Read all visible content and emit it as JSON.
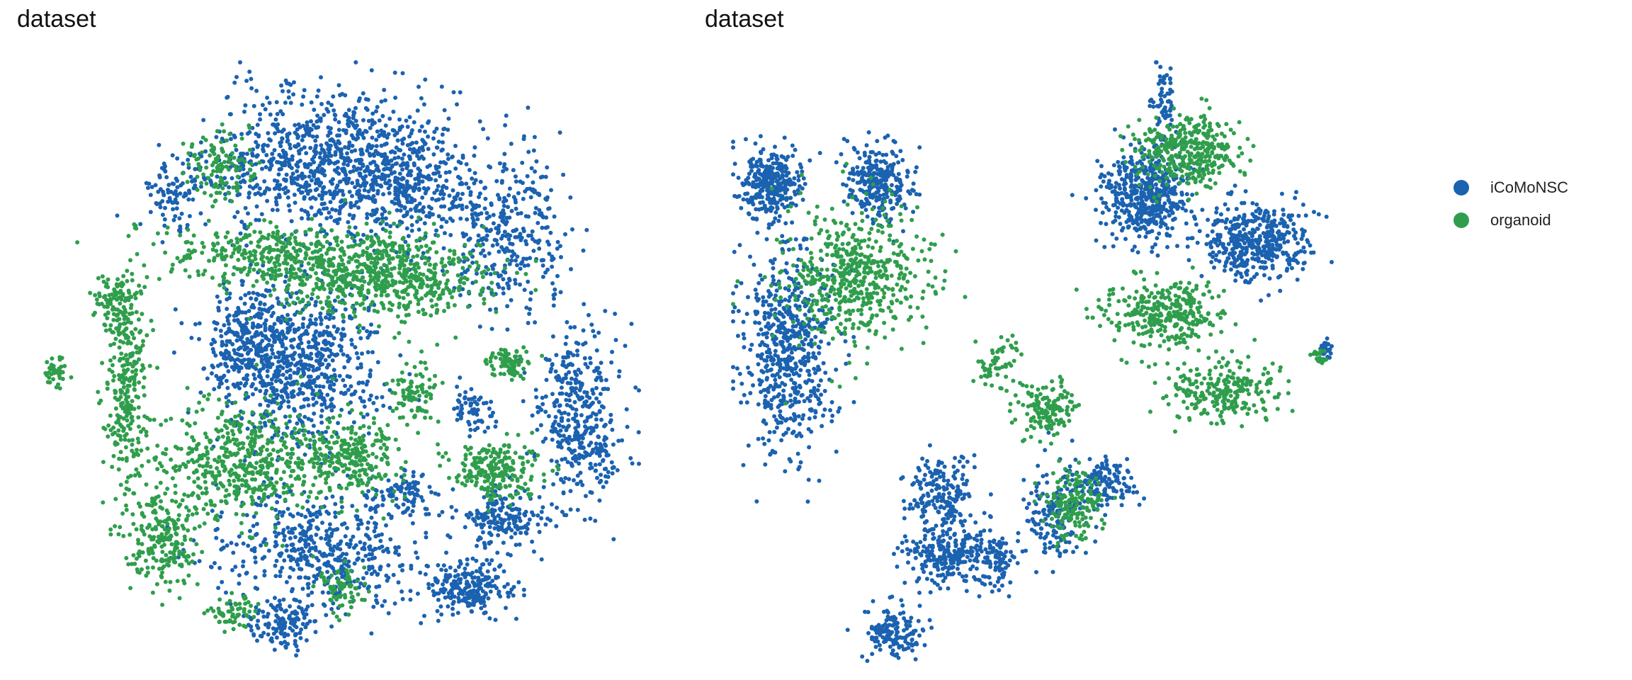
{
  "colors": {
    "iCoMoNSC": "#1b62b0",
    "organoid": "#2f9e4c"
  },
  "chart_data": [
    {
      "type": "scatter",
      "title": "dataset",
      "embedding": "tSNE",
      "xlabel": "",
      "ylabel": "",
      "axes_visible": false,
      "grid": false,
      "series": [
        {
          "name": "iCoMoNSC",
          "color": "#1b62b0",
          "clusters": [
            {
              "cx": 0.47,
              "cy": 0.17,
              "rx": 0.2,
              "ry": 0.12,
              "n": 900
            },
            {
              "cx": 0.6,
              "cy": 0.21,
              "rx": 0.12,
              "ry": 0.1,
              "n": 300
            },
            {
              "cx": 0.78,
              "cy": 0.28,
              "rx": 0.11,
              "ry": 0.15,
              "n": 350
            },
            {
              "cx": 0.22,
              "cy": 0.22,
              "rx": 0.05,
              "ry": 0.06,
              "n": 90
            },
            {
              "cx": 0.43,
              "cy": 0.51,
              "rx": 0.13,
              "ry": 0.14,
              "n": 700
            },
            {
              "cx": 0.34,
              "cy": 0.47,
              "rx": 0.08,
              "ry": 0.09,
              "n": 260
            },
            {
              "cx": 0.9,
              "cy": 0.59,
              "rx": 0.07,
              "ry": 0.15,
              "n": 420
            },
            {
              "cx": 0.77,
              "cy": 0.76,
              "rx": 0.07,
              "ry": 0.05,
              "n": 180
            },
            {
              "cx": 0.72,
              "cy": 0.88,
              "rx": 0.07,
              "ry": 0.04,
              "n": 230
            },
            {
              "cx": 0.47,
              "cy": 0.82,
              "rx": 0.18,
              "ry": 0.1,
              "n": 520
            },
            {
              "cx": 0.4,
              "cy": 0.94,
              "rx": 0.06,
              "ry": 0.04,
              "n": 120
            },
            {
              "cx": 0.6,
              "cy": 0.72,
              "rx": 0.05,
              "ry": 0.04,
              "n": 80
            },
            {
              "cx": 0.72,
              "cy": 0.58,
              "rx": 0.04,
              "ry": 0.04,
              "n": 60
            }
          ]
        },
        {
          "name": "organoid",
          "color": "#2f9e4c",
          "clusters": [
            {
              "cx": 0.58,
              "cy": 0.36,
              "rx": 0.17,
              "ry": 0.07,
              "n": 600
            },
            {
              "cx": 0.4,
              "cy": 0.32,
              "rx": 0.18,
              "ry": 0.05,
              "n": 350
            },
            {
              "cx": 0.3,
              "cy": 0.17,
              "rx": 0.06,
              "ry": 0.06,
              "n": 120
            },
            {
              "cx": 0.33,
              "cy": 0.67,
              "rx": 0.14,
              "ry": 0.1,
              "n": 520
            },
            {
              "cx": 0.14,
              "cy": 0.55,
              "rx": 0.04,
              "ry": 0.2,
              "n": 300
            },
            {
              "cx": 0.12,
              "cy": 0.4,
              "rx": 0.04,
              "ry": 0.06,
              "n": 80
            },
            {
              "cx": 0.2,
              "cy": 0.8,
              "rx": 0.06,
              "ry": 0.08,
              "n": 200
            },
            {
              "cx": 0.52,
              "cy": 0.66,
              "rx": 0.08,
              "ry": 0.06,
              "n": 240
            },
            {
              "cx": 0.76,
              "cy": 0.68,
              "rx": 0.07,
              "ry": 0.05,
              "n": 220
            },
            {
              "cx": 0.78,
              "cy": 0.5,
              "rx": 0.04,
              "ry": 0.03,
              "n": 80
            },
            {
              "cx": 0.62,
              "cy": 0.55,
              "rx": 0.04,
              "ry": 0.06,
              "n": 90
            },
            {
              "cx": 0.5,
              "cy": 0.88,
              "rx": 0.04,
              "ry": 0.04,
              "n": 70
            },
            {
              "cx": 0.02,
              "cy": 0.52,
              "rx": 0.02,
              "ry": 0.03,
              "n": 40
            },
            {
              "cx": 0.32,
              "cy": 0.92,
              "rx": 0.04,
              "ry": 0.03,
              "n": 60
            }
          ]
        }
      ]
    },
    {
      "type": "scatter",
      "title": "dataset",
      "embedding": "UMAP",
      "xlabel": "",
      "ylabel": "",
      "axes_visible": false,
      "grid": false,
      "legend_position": "right",
      "series": [
        {
          "name": "iCoMoNSC",
          "color": "#1b62b0",
          "clusters": [
            {
              "cx": 0.06,
              "cy": 0.2,
              "rx": 0.05,
              "ry": 0.06,
              "n": 300
            },
            {
              "cx": 0.24,
              "cy": 0.2,
              "rx": 0.05,
              "ry": 0.06,
              "n": 260
            },
            {
              "cx": 0.09,
              "cy": 0.48,
              "rx": 0.08,
              "ry": 0.17,
              "n": 600
            },
            {
              "cx": 0.69,
              "cy": 0.22,
              "rx": 0.07,
              "ry": 0.08,
              "n": 500
            },
            {
              "cx": 0.87,
              "cy": 0.3,
              "rx": 0.09,
              "ry": 0.06,
              "n": 450
            },
            {
              "cx": 0.72,
              "cy": 0.08,
              "rx": 0.02,
              "ry": 0.07,
              "n": 70
            },
            {
              "cx": 0.35,
              "cy": 0.72,
              "rx": 0.06,
              "ry": 0.06,
              "n": 180
            },
            {
              "cx": 0.36,
              "cy": 0.82,
              "rx": 0.07,
              "ry": 0.05,
              "n": 260
            },
            {
              "cx": 0.54,
              "cy": 0.76,
              "rx": 0.05,
              "ry": 0.08,
              "n": 160
            },
            {
              "cx": 0.62,
              "cy": 0.7,
              "rx": 0.05,
              "ry": 0.04,
              "n": 120
            },
            {
              "cx": 0.27,
              "cy": 0.95,
              "rx": 0.05,
              "ry": 0.04,
              "n": 150
            },
            {
              "cx": 0.44,
              "cy": 0.83,
              "rx": 0.03,
              "ry": 0.05,
              "n": 80
            },
            {
              "cx": 0.99,
              "cy": 0.48,
              "rx": 0.01,
              "ry": 0.015,
              "n": 25
            }
          ]
        },
        {
          "name": "organoid",
          "color": "#2f9e4c",
          "clusters": [
            {
              "cx": 0.2,
              "cy": 0.35,
              "rx": 0.12,
              "ry": 0.11,
              "n": 520
            },
            {
              "cx": 0.76,
              "cy": 0.15,
              "rx": 0.09,
              "ry": 0.06,
              "n": 360
            },
            {
              "cx": 0.72,
              "cy": 0.42,
              "rx": 0.1,
              "ry": 0.06,
              "n": 320
            },
            {
              "cx": 0.82,
              "cy": 0.55,
              "rx": 0.1,
              "ry": 0.05,
              "n": 240
            },
            {
              "cx": 0.52,
              "cy": 0.58,
              "rx": 0.05,
              "ry": 0.05,
              "n": 140
            },
            {
              "cx": 0.57,
              "cy": 0.74,
              "rx": 0.05,
              "ry": 0.06,
              "n": 160
            },
            {
              "cx": 0.44,
              "cy": 0.5,
              "rx": 0.04,
              "ry": 0.05,
              "n": 60
            },
            {
              "cx": 0.98,
              "cy": 0.49,
              "rx": 0.01,
              "ry": 0.015,
              "n": 20
            }
          ]
        }
      ]
    }
  ],
  "legend": {
    "items": [
      {
        "label": "iCoMoNSC",
        "color": "#1b62b0"
      },
      {
        "label": "organoid",
        "color": "#2f9e4c"
      }
    ]
  }
}
